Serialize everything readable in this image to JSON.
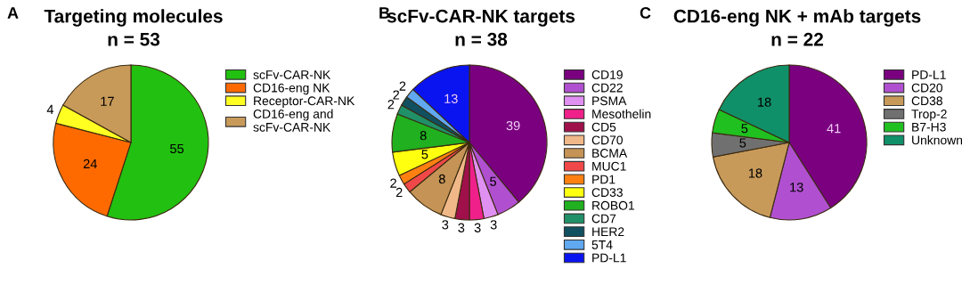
{
  "chart_data": [
    {
      "type": "pie",
      "title": "Targeting molecules",
      "subtitle": "n = 53",
      "annotations": [
        "A"
      ],
      "legend": "right",
      "data_labels": true,
      "categories": [
        "scFv-CAR-NK",
        "CD16-eng NK",
        "Receptor-CAR-NK",
        "CD16-eng and scFv-CAR-NK"
      ],
      "values": [
        55,
        24,
        4,
        17
      ],
      "colors": [
        "#22c010",
        "#ff6a00",
        "#ffff22",
        "#c89a5a"
      ]
    },
    {
      "type": "pie",
      "title": "scFv-CAR-NK targets",
      "subtitle": "n = 38",
      "annotations": [
        "B"
      ],
      "legend": "right",
      "data_labels": true,
      "categories": [
        "CD19",
        "CD22",
        "PSMA",
        "Mesothelin",
        "CD5",
        "CD70",
        "BCMA",
        "MUC1",
        "PD1",
        "CD33",
        "ROBO1",
        "CD7",
        "HER2",
        "5T4",
        "PD-L1"
      ],
      "values": [
        39,
        5,
        3,
        3,
        3,
        3,
        8,
        2,
        2,
        5,
        8,
        2,
        2,
        2,
        13
      ],
      "colors": [
        "#7a0080",
        "#b050d0",
        "#e090f0",
        "#f0208a",
        "#a0104a",
        "#f0b888",
        "#c49355",
        "#f04848",
        "#ff8010",
        "#ffff10",
        "#20b020",
        "#209068",
        "#105060",
        "#60a8f0",
        "#0a14f0"
      ]
    },
    {
      "type": "pie",
      "title": "CD16-eng NK + mAb targets",
      "subtitle": "n = 22",
      "annotations": [
        "C"
      ],
      "legend": "right",
      "data_labels": true,
      "categories": [
        "PD-L1",
        "CD20",
        "CD38",
        "Trop-2",
        "B7-H3",
        "Unknown"
      ],
      "values": [
        41,
        13,
        18,
        5,
        5,
        18
      ],
      "colors": [
        "#7a0080",
        "#b050d0",
        "#c89a5a",
        "#707070",
        "#20c020",
        "#109068"
      ]
    }
  ]
}
